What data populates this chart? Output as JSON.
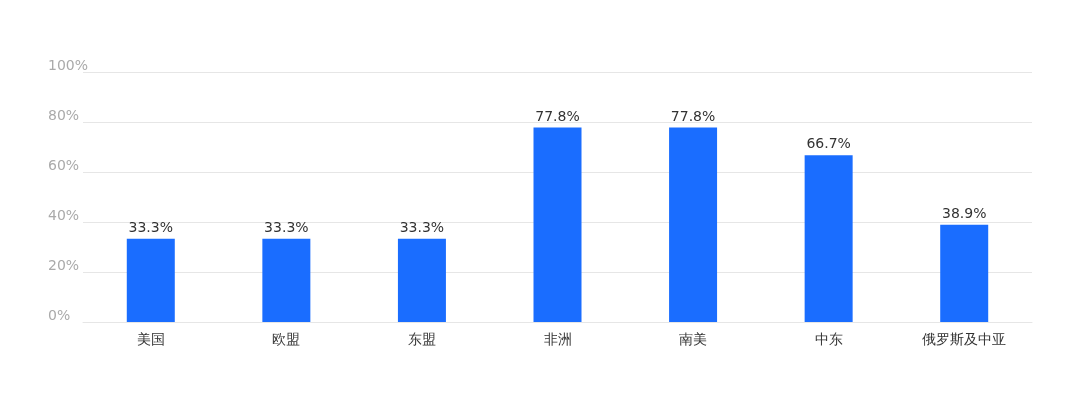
{
  "chart_data": {
    "type": "bar",
    "categories": [
      "美国",
      "欧盟",
      "东盟",
      "非洲",
      "南美",
      "中东",
      "俄罗斯及中亚"
    ],
    "values": [
      33.3,
      33.3,
      33.3,
      77.8,
      77.8,
      66.7,
      38.9
    ],
    "color": "#1a6dff",
    "value_labels": [
      "33.3%",
      "33.3%",
      "33.3%",
      "77.8%",
      "77.8%",
      "66.7%",
      "38.9%"
    ],
    "ylim": [
      0,
      100
    ],
    "yticks": [
      {
        "value": 0,
        "label": "0%"
      },
      {
        "value": 20,
        "label": "20%"
      },
      {
        "value": 40,
        "label": "40%"
      },
      {
        "value": 60,
        "label": "60%"
      },
      {
        "value": 80,
        "label": "80%"
      },
      {
        "value": 100,
        "label": "100%"
      }
    ],
    "grid": "y"
  }
}
